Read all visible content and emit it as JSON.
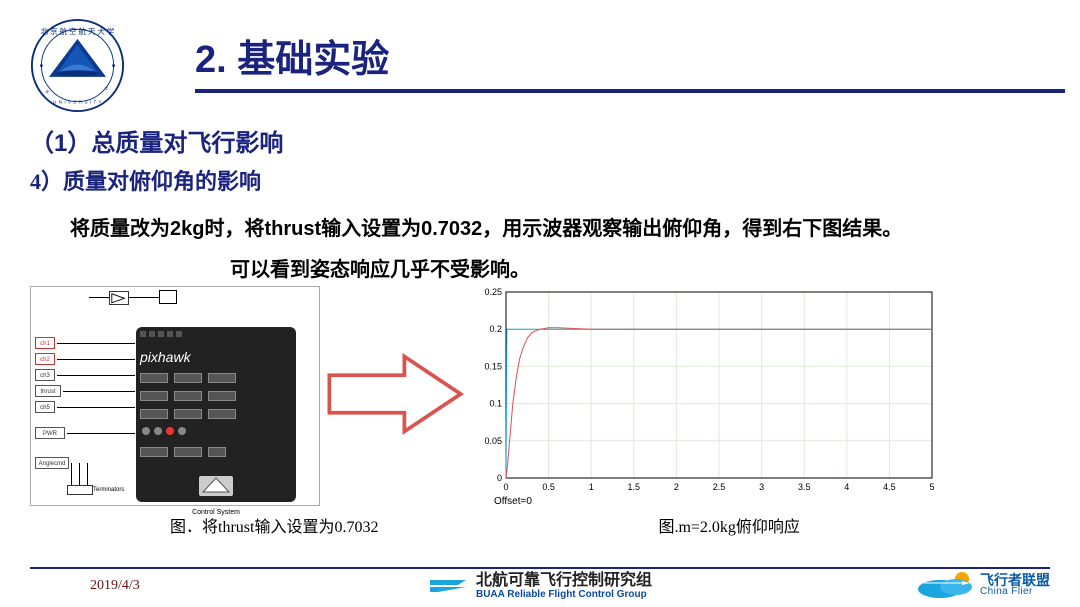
{
  "header": {
    "title": "2. 基础实验",
    "underline_color": "#1a237e",
    "title_color": "#1a237e"
  },
  "section": {
    "sub1": "（1）总质量对飞行影响",
    "sub2": "4）质量对俯仰角的影响",
    "desc": "将质量改为2kg时，将thrust输入设置为0.7032，用示波器观察输出俯仰角，得到右下图结果。",
    "desc2": "可以看到姿态响应几乎不受影响。"
  },
  "diagram": {
    "caption": "图．将thrust输入设置为0.7032",
    "brand": "pixhawk",
    "cs_label": "Control System",
    "ports_left": [
      "ch1",
      "ch2",
      "ch3",
      "thrust",
      "ch5"
    ],
    "ports_bottom": [
      "Anglecmd",
      "Terminators"
    ]
  },
  "arrow": {
    "color": "#d9534f"
  },
  "chart": {
    "type": "line",
    "caption": "图.m=2.0kg俯仰响应",
    "offset_label": "Offset=0",
    "xlim": [
      0,
      5
    ],
    "ylim": [
      0,
      0.25
    ],
    "xticks": [
      0,
      0.5,
      1,
      1.5,
      2,
      2.5,
      3,
      3.5,
      4,
      4.5,
      5
    ],
    "xtick_labels": [
      "0",
      "0.5",
      "1",
      "1.5",
      "2",
      "2.5",
      "3",
      "3.5",
      "4",
      "4.5",
      "5"
    ],
    "yticks": [
      0,
      0.05,
      0.1,
      0.15,
      0.2,
      0.25
    ],
    "ytick_labels": [
      "0",
      "0.05",
      "0.1",
      "0.15",
      "0.2",
      "0.25"
    ],
    "grid_color": "#dfead8",
    "axis_color": "#000000",
    "background_color": "#ffffff",
    "tick_fontsize": 9,
    "series": [
      {
        "name": "reference",
        "color": "#1fa0d8",
        "width": 1,
        "x": [
          0,
          0.01,
          5
        ],
        "y": [
          0,
          0.2,
          0.2
        ]
      },
      {
        "name": "response",
        "color": "#d9534f",
        "width": 1,
        "x": [
          0,
          0.02,
          0.05,
          0.08,
          0.12,
          0.16,
          0.2,
          0.25,
          0.3,
          0.35,
          0.4,
          0.5,
          0.6,
          0.8,
          1.0,
          5
        ],
        "y": [
          0,
          0.02,
          0.06,
          0.1,
          0.135,
          0.16,
          0.175,
          0.188,
          0.195,
          0.198,
          0.2,
          0.202,
          0.202,
          0.201,
          0.2,
          0.2
        ]
      }
    ]
  },
  "footer": {
    "date": "2019/4/3",
    "org_cn": "北航可靠飞行控制研究组",
    "org_en": "BUAA  Reliable Flight Control Group",
    "flier_cn": "飞行者联盟",
    "flier_en": "China Flier",
    "line_color": "#1a237e",
    "org_icon_color": "#1aa5e0",
    "flier_colors": {
      "cloud": "#1aa5e0",
      "sun": "#f7a400"
    }
  }
}
